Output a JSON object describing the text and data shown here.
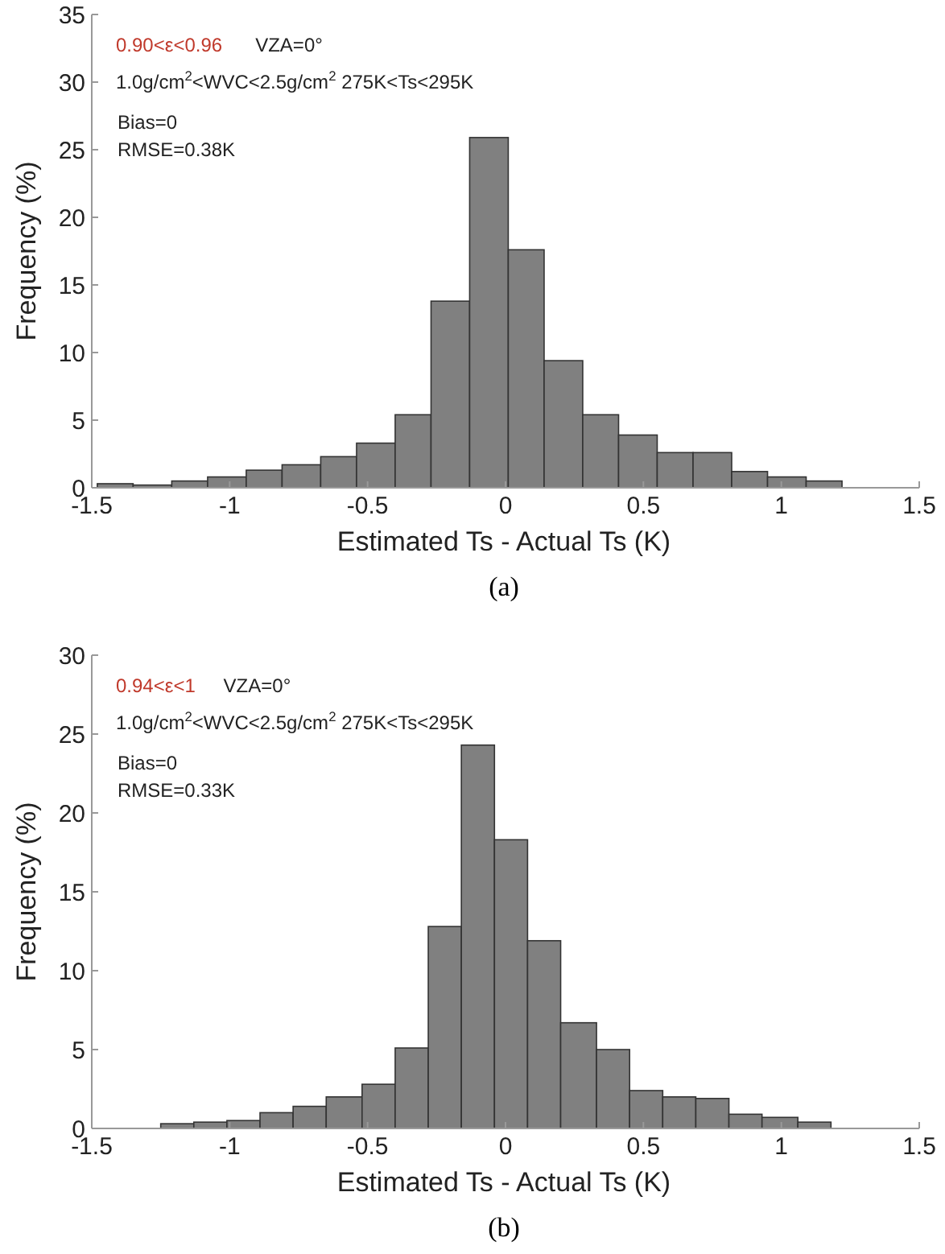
{
  "chart_data": [
    {
      "type": "histogram",
      "xlabel": "Estimated Ts - Actual Ts (K)",
      "ylabel": "Frequency (%)",
      "color": "#808080",
      "bins": [
        -1.48,
        -1.35,
        -1.21,
        -1.08,
        -0.94,
        -0.81,
        -0.67,
        -0.54,
        -0.4,
        -0.27,
        -0.13,
        0.01,
        0.14,
        0.28,
        0.41,
        0.55,
        0.68,
        0.82,
        0.95,
        1.09,
        1.22
      ],
      "values": [
        0.3,
        0.2,
        0.5,
        0.8,
        1.3,
        1.7,
        2.3,
        3.3,
        5.4,
        13.8,
        25.9,
        17.6,
        9.4,
        5.4,
        3.9,
        2.6,
        2.6,
        1.2,
        0.8,
        0.5
      ],
      "xlim": [
        -1.5,
        1.5
      ],
      "xticks": [
        -1.5,
        -1,
        -0.5,
        0,
        0.5,
        1,
        1.5
      ],
      "ylim": [
        0,
        35
      ],
      "yticks": [
        0,
        5,
        10,
        15,
        20,
        25,
        30,
        35
      ],
      "annotations": [
        "0.90<ε<0.96",
        "VZA=0°",
        "1.0g/cm$^{2}$<WVC<2.5g/cm$^{2}$ 275K<Ts<295K",
        "Bias=0",
        "RMSE=0.38K",
        "(a)"
      ]
    },
    {
      "type": "histogram",
      "xlabel": "Estimated Ts - Actual Ts (K)",
      "ylabel": "Frequency (%)",
      "color": "#808080",
      "bins": [
        -1.25,
        -1.13,
        -1.01,
        -0.89,
        -0.77,
        -0.65,
        -0.52,
        -0.4,
        -0.28,
        -0.16,
        -0.04,
        0.08,
        0.2,
        0.33,
        0.45,
        0.57,
        0.69,
        0.81,
        0.93,
        1.06,
        1.18
      ],
      "values": [
        0.3,
        0.4,
        0.5,
        1.0,
        1.4,
        2.0,
        2.8,
        5.1,
        12.8,
        24.3,
        18.3,
        11.9,
        6.7,
        5.0,
        2.4,
        2.0,
        1.9,
        0.9,
        0.7,
        0.4
      ],
      "xlim": [
        -1.5,
        1.5
      ],
      "xticks": [
        -1.5,
        -1,
        -0.5,
        0,
        0.5,
        1,
        1.5
      ],
      "ylim": [
        0,
        30
      ],
      "yticks": [
        0,
        5,
        10,
        15,
        20,
        25,
        30
      ],
      "annotations": [
        "0.94<ε<1",
        "VZA=0°",
        "1.0g/cm$^{2}$<WVC<2.5g/cm$^{2}$ 275K<Ts<295K",
        "Bias=0",
        "RMSE=0.33K",
        "(b)"
      ]
    }
  ]
}
